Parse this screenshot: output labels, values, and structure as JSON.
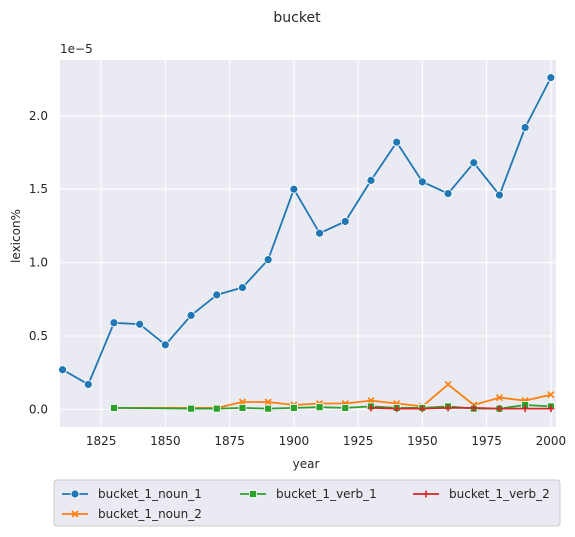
{
  "chart_data": {
    "type": "line",
    "title": "bucket",
    "xlabel": "year",
    "ylabel": "lexicon%",
    "y_scale_label": "1e−5",
    "xlim": [
      1809,
      2002
    ],
    "ylim": [
      -0.12,
      2.38
    ],
    "x_ticks": [
      1825,
      1850,
      1875,
      1900,
      1925,
      1950,
      1975,
      2000
    ],
    "y_ticks": [
      0.0,
      0.5,
      1.0,
      1.5,
      2.0
    ],
    "y_tick_labels": [
      "0.0",
      "0.5",
      "1.0",
      "1.5",
      "2.0"
    ],
    "grid": true,
    "legend_position": "bottom",
    "background": "#eaeaf2",
    "series": [
      {
        "name": "bucket_1_noun_1",
        "color": "#1f77b4",
        "marker": "circle",
        "x": [
          1810,
          1820,
          1830,
          1840,
          1850,
          1860,
          1870,
          1880,
          1890,
          1900,
          1910,
          1920,
          1930,
          1940,
          1950,
          1960,
          1970,
          1980,
          1990,
          2000
        ],
        "y": [
          0.27,
          0.17,
          0.59,
          0.58,
          0.44,
          0.64,
          0.78,
          0.83,
          1.02,
          1.5,
          1.2,
          1.28,
          1.56,
          1.82,
          1.55,
          1.47,
          1.68,
          1.46,
          1.92,
          2.26
        ]
      },
      {
        "name": "bucket_1_noun_2",
        "color": "#ff7f0e",
        "marker": "x",
        "x": [
          1830,
          1860,
          1870,
          1880,
          1890,
          1900,
          1910,
          1920,
          1930,
          1940,
          1950,
          1960,
          1970,
          1980,
          1990,
          2000
        ],
        "y": [
          0.01,
          0.01,
          0.01,
          0.05,
          0.05,
          0.03,
          0.04,
          0.04,
          0.06,
          0.04,
          0.02,
          0.17,
          0.03,
          0.08,
          0.06,
          0.1
        ]
      },
      {
        "name": "bucket_1_verb_1",
        "color": "#2ca02c",
        "marker": "square",
        "x": [
          1830,
          1860,
          1870,
          1880,
          1890,
          1900,
          1910,
          1920,
          1930,
          1940,
          1950,
          1960,
          1970,
          1980,
          1990,
          2000
        ],
        "y": [
          0.01,
          0.005,
          0.005,
          0.01,
          0.005,
          0.01,
          0.015,
          0.01,
          0.02,
          0.01,
          0.01,
          0.02,
          0.005,
          0.005,
          0.03,
          0.02
        ]
      },
      {
        "name": "bucket_1_verb_2",
        "color": "#d62728",
        "marker": "plus",
        "x": [
          1930,
          1940,
          1950,
          1960,
          1970,
          1980,
          1990,
          2000
        ],
        "y": [
          0.01,
          0.005,
          0.005,
          0.01,
          0.01,
          0.005,
          0.005,
          0.005
        ]
      }
    ]
  }
}
